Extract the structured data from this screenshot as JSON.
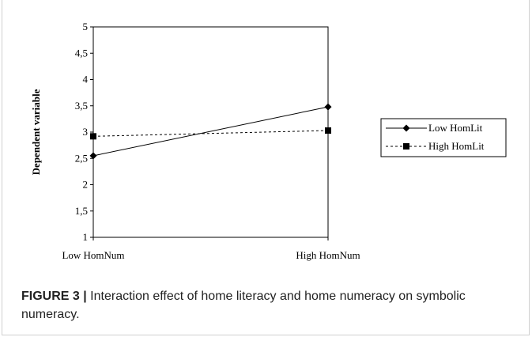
{
  "caption": {
    "label": "FIGURE 3 |",
    "text": "Interaction effect of home literacy and home numeracy on symbolic numeracy."
  },
  "chart_data": {
    "type": "line",
    "categories": [
      "Low HomNum",
      "High HomNum"
    ],
    "series": [
      {
        "name": "Low HomLit",
        "values": [
          2.55,
          3.48
        ],
        "style": "solid",
        "marker": "diamond"
      },
      {
        "name": "High HomLit",
        "values": [
          2.92,
          3.03
        ],
        "style": "dashed",
        "marker": "square"
      }
    ],
    "ylabel": "Dependent variable",
    "xlabel": "",
    "ylim": [
      1,
      5
    ],
    "yticks": [
      1,
      1.5,
      2,
      2.5,
      3,
      3.5,
      4,
      4.5,
      5
    ],
    "ytick_labels": [
      "1",
      "1,5",
      "2",
      "2,5",
      "3",
      "3,5",
      "4",
      "4,5",
      "5"
    ],
    "legend_position": "right",
    "grid": false,
    "colors": {
      "line": "#000000"
    }
  }
}
